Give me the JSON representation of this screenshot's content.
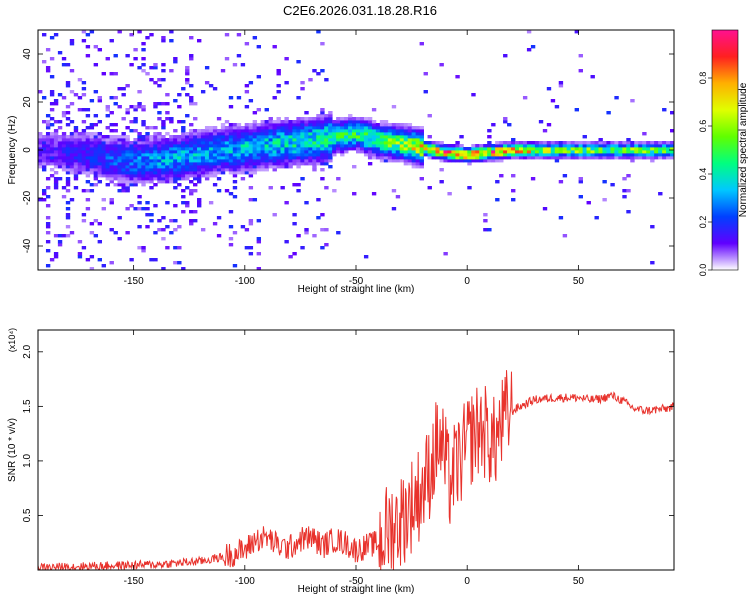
{
  "title": "C2E6.2026.031.18.28.R16",
  "chart_data": [
    {
      "type": "heatmap",
      "title": "C2E6.2026.031.18.28.R16",
      "xlabel": "Height of straight line (km)",
      "ylabel": "Frequency (Hz)",
      "xlim": [
        -193,
        93
      ],
      "ylim": [
        -50,
        50
      ],
      "xticks": [
        -150,
        -100,
        -50,
        0,
        50
      ],
      "xtick_labels": [
        "-150",
        "-100",
        "-50",
        "0",
        "50"
      ],
      "yticks": [
        -40,
        -20,
        0,
        20,
        40
      ],
      "ytick_labels": [
        "-40",
        "-20",
        "0",
        "20",
        "40"
      ],
      "colorbar": {
        "label": "Normalized spectral amplitude",
        "range": [
          0,
          1
        ],
        "ticks": [
          0,
          0.2,
          0.4,
          0.6,
          0.8
        ],
        "tick_labels": [
          "0.0",
          "0.2",
          "0.4",
          "0.6",
          "0.8"
        ],
        "colormap": [
          "#ffffff",
          "#6000ff",
          "#0040ff",
          "#00c8ff",
          "#00ff80",
          "#60ff00",
          "#e0ff00",
          "#ffb000",
          "#ff2020",
          "#ff1090"
        ]
      },
      "ridge": {
        "x": [
          -190,
          -170,
          -150,
          -130,
          -110,
          -90,
          -70,
          -50,
          -40,
          -30,
          -20,
          -10,
          0,
          10,
          20,
          40,
          60,
          93
        ],
        "center_freq": [
          0,
          -2,
          -5,
          -3,
          0,
          2,
          4,
          7,
          4,
          3,
          1,
          -1,
          -2,
          -1,
          0,
          0,
          0,
          0
        ],
        "peak_amplitude": [
          0.12,
          0.2,
          0.3,
          0.35,
          0.35,
          0.4,
          0.45,
          0.5,
          0.55,
          0.6,
          0.8,
          0.9,
          0.92,
          0.9,
          0.88,
          0.6,
          0.6,
          0.6
        ]
      }
    },
    {
      "type": "line",
      "xlabel": "Height of straight line (km)",
      "ylabel": "SNR (10 * v/v)",
      "scale_label": "(x10⁴)",
      "xlim": [
        -193,
        93
      ],
      "ylim": [
        0,
        2.2
      ],
      "xticks": [
        -150,
        -100,
        -50,
        0,
        50
      ],
      "xtick_labels": [
        "-150",
        "-100",
        "-50",
        "0",
        "50"
      ],
      "yticks": [
        0.5,
        1.0,
        1.5,
        2.0
      ],
      "ytick_labels": [
        "0.5",
        "1.0",
        "1.5",
        "2.0"
      ],
      "series": [
        {
          "name": "SNR",
          "color": "#e8322c",
          "x": [
            -193,
            -180,
            -160,
            -140,
            -120,
            -110,
            -100,
            -95,
            -90,
            -85,
            -80,
            -75,
            -70,
            -65,
            -60,
            -55,
            -50,
            -45,
            -40,
            -35,
            -30,
            -25,
            -20,
            -17,
            -15,
            -13,
            -11,
            -8,
            -5,
            -2,
            0,
            3,
            6,
            9,
            12,
            15,
            18,
            22,
            26,
            30,
            35,
            40,
            45,
            50,
            55,
            60,
            65,
            70,
            75,
            80,
            85,
            90,
            93
          ],
          "values": [
            0.02,
            0.03,
            0.04,
            0.05,
            0.08,
            0.12,
            0.18,
            0.28,
            0.3,
            0.22,
            0.2,
            0.28,
            0.3,
            0.22,
            0.28,
            0.25,
            0.18,
            0.22,
            0.25,
            0.38,
            0.45,
            0.6,
            0.75,
            0.9,
            1.05,
            1.2,
            1.1,
            0.8,
            0.95,
            1.05,
            1.15,
            1.25,
            1.3,
            1.25,
            1.15,
            1.3,
            1.42,
            1.48,
            1.52,
            1.56,
            1.57,
            1.58,
            1.58,
            1.58,
            1.56,
            1.57,
            1.6,
            1.55,
            1.48,
            1.46,
            1.47,
            1.48,
            1.5
          ]
        }
      ]
    }
  ]
}
